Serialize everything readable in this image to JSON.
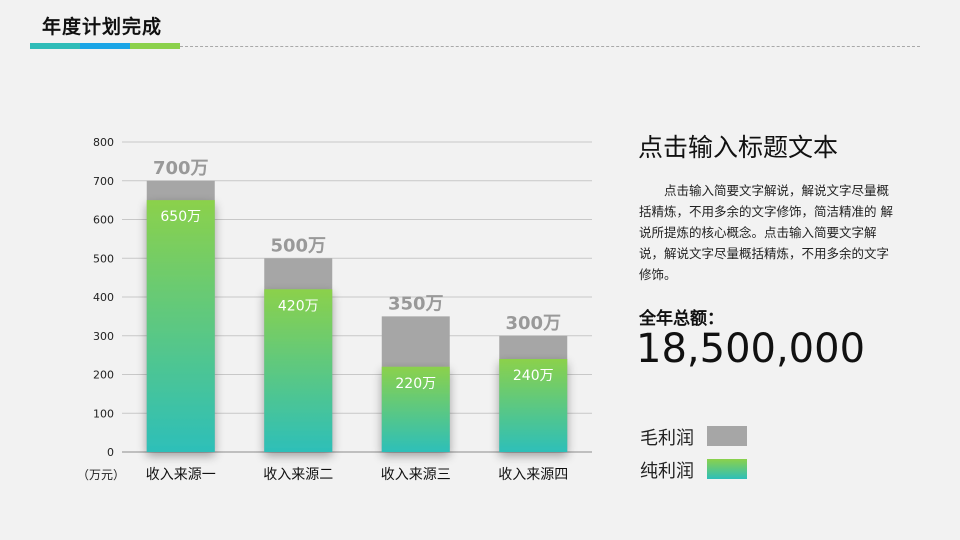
{
  "header": {
    "title": "年度计划完成"
  },
  "chart_data": {
    "type": "bar",
    "categories": [
      "收入来源一",
      "收入来源二",
      "收入来源三",
      "收入来源四"
    ],
    "series": [
      {
        "name": "毛利润",
        "values": [
          700,
          500,
          350,
          300
        ],
        "labels": [
          "700万",
          "500万",
          "350万",
          "300万"
        ],
        "color": "#a6a6a6"
      },
      {
        "name": "纯利润",
        "values": [
          650,
          420,
          220,
          240
        ],
        "labels": [
          "650万",
          "420万",
          "220万",
          "240万"
        ],
        "color_top": "#8bd14b",
        "color_bottom": "#2dbfb9"
      }
    ],
    "ylim": [
      0,
      800
    ],
    "yticks": [
      0,
      100,
      200,
      300,
      400,
      500,
      600,
      700,
      800
    ],
    "ytick_labels": [
      "0",
      "100",
      "200",
      "300",
      "400",
      "500",
      "600",
      "700",
      "800"
    ],
    "unit_label": "（万元）",
    "grid": true
  },
  "side": {
    "heading": "点击输入标题文本",
    "body": "点击输入简要文字解说，解说文字尽量概括精炼，不用多余的文字修饰，简洁精准的 解说所提炼的核心概念。点击输入简要文字解说，解说文字尽量概括精炼，不用多余的文字修饰。",
    "total_caption": "全年总额：",
    "total_amount": "18,500,000"
  },
  "legend": {
    "items": [
      {
        "label": "毛利润",
        "swatch": "gray"
      },
      {
        "label": "纯利润",
        "swatch": "gradient"
      }
    ]
  }
}
